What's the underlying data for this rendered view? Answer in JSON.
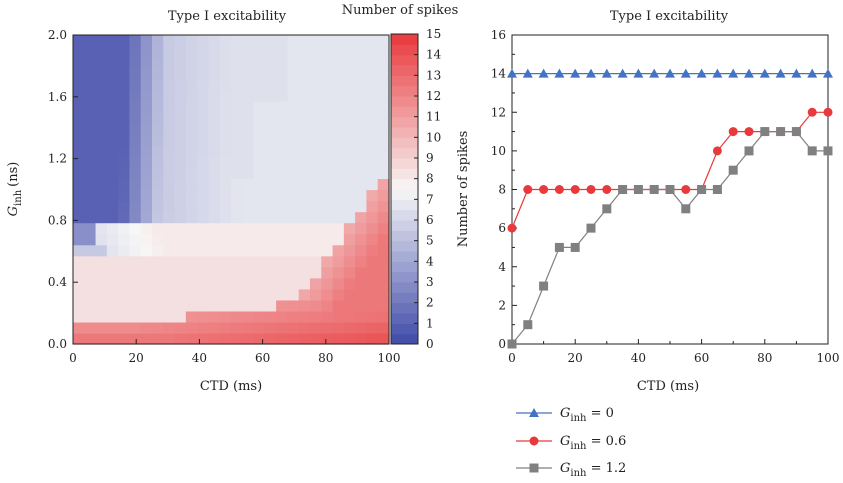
{
  "chart_data": [
    {
      "type": "heatmap",
      "title": "Type I excitability",
      "xlabel": "CTD (ms)",
      "ylabel_main": "G",
      "ylabel_sub": "inh",
      "ylabel_unit": "(ns)",
      "xlim": [
        0,
        100
      ],
      "ylim": [
        0,
        2.0
      ],
      "xticks": [
        "0",
        "20",
        "40",
        "60",
        "80",
        "100"
      ],
      "yticks": [
        "0.0",
        "0.4",
        "0.8",
        "1.2",
        "1.6",
        "2.0"
      ],
      "colorbar": {
        "title": "Number of spikes",
        "min": 0,
        "max": 15,
        "ticks": [
          "0",
          "1",
          "2",
          "3",
          "4",
          "5",
          "6",
          "7",
          "8",
          "9",
          "10",
          "11",
          "12",
          "13",
          "14",
          "15"
        ],
        "low_color": "#3f4aa8",
        "mid_color": "#f7f7f7",
        "high_color": "#e8393c"
      }
    },
    {
      "type": "line",
      "title": "Type I excitability",
      "xlabel": "CTD (ms)",
      "ylabel": "Number of spikes",
      "xlim": [
        0,
        100
      ],
      "ylim": [
        0,
        16
      ],
      "xticks": [
        "0",
        "20",
        "40",
        "60",
        "80",
        "100"
      ],
      "yticks": [
        "0",
        "2",
        "4",
        "6",
        "8",
        "10",
        "12",
        "14",
        "16"
      ],
      "x": [
        0,
        5,
        10,
        15,
        20,
        25,
        30,
        35,
        40,
        45,
        50,
        55,
        60,
        65,
        70,
        75,
        80,
        85,
        90,
        95,
        100
      ],
      "series": [
        {
          "label_main": "G",
          "label_sub": "inh",
          "label_value": " = 0",
          "color": "#4472c4",
          "marker": "triangle",
          "values": [
            14,
            14,
            14,
            14,
            14,
            14,
            14,
            14,
            14,
            14,
            14,
            14,
            14,
            14,
            14,
            14,
            14,
            14,
            14,
            14,
            14
          ]
        },
        {
          "label_main": "G",
          "label_sub": "inh",
          "label_value": " = 0.6",
          "color": "#e8393c",
          "marker": "circle",
          "values": [
            6,
            8,
            8,
            8,
            8,
            8,
            8,
            8,
            8,
            8,
            8,
            8,
            8,
            10,
            11,
            11,
            11,
            11,
            11,
            12,
            12
          ]
        },
        {
          "label_main": "G",
          "label_sub": "inh",
          "label_value": " = 1.2",
          "color": "#808080",
          "marker": "square",
          "values": [
            0,
            1,
            3,
            5,
            5,
            6,
            7,
            8,
            8,
            8,
            8,
            7,
            8,
            8,
            9,
            10,
            11,
            11,
            11,
            10,
            10
          ]
        }
      ]
    }
  ]
}
